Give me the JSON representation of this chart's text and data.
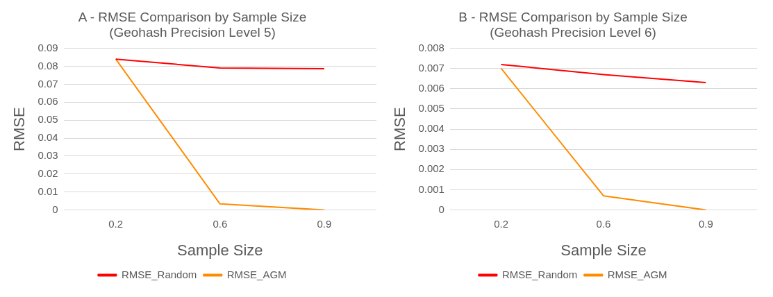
{
  "chart_data": [
    {
      "type": "line",
      "title": "A - RMSE Comparison by Sample Size\n(Geohash Precision Level 5)",
      "xlabel": "Sample Size",
      "ylabel": "RMSE",
      "categories": [
        "0.2",
        "0.6",
        "0.9"
      ],
      "series": [
        {
          "name": "RMSE_Random",
          "color": "#ff0000",
          "values": [
            0.084,
            0.079,
            0.0786
          ]
        },
        {
          "name": "RMSE_AGM",
          "color": "#ff8c00",
          "values": [
            0.084,
            0.0034,
            0
          ]
        }
      ],
      "ylim": [
        0,
        0.09
      ],
      "yticks": [
        0,
        0.01,
        0.02,
        0.03,
        0.04,
        0.05,
        0.06,
        0.07,
        0.08,
        0.09
      ],
      "grid": "y",
      "legend": "bottom",
      "marker": "none",
      "line_style": "solid"
    },
    {
      "type": "line",
      "title": "B - RMSE Comparison by Sample Size\n(Geohash Precision Level 6)",
      "xlabel": "Sample Size",
      "ylabel": "RMSE",
      "categories": [
        "0.2",
        "0.6",
        "0.9"
      ],
      "series": [
        {
          "name": "RMSE_Random",
          "color": "#ff0000",
          "values": [
            0.0072,
            0.0067,
            0.0063
          ]
        },
        {
          "name": "RMSE_AGM",
          "color": "#ff8c00",
          "values": [
            0.007,
            0.0007,
            0
          ]
        }
      ],
      "ylim": [
        0,
        0.008
      ],
      "yticks": [
        0,
        0.001,
        0.002,
        0.003,
        0.004,
        0.005,
        0.006,
        0.007,
        0.008
      ],
      "grid": "y",
      "legend": "bottom",
      "marker": "none",
      "line_style": "solid"
    }
  ]
}
